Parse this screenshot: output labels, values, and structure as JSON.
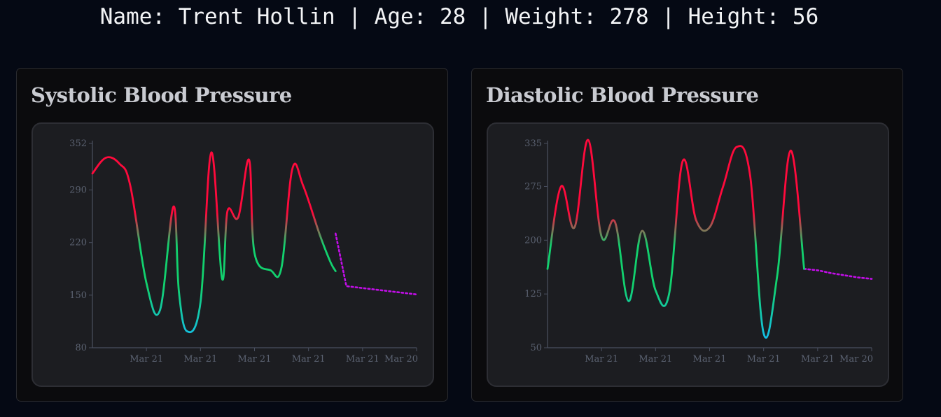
{
  "header": {
    "text": "Name: Trent Hollin | Age: 28 | Weight: 278 | Height: 56"
  },
  "colors": {
    "background": "#050914",
    "card": "#0b0b0d",
    "plot_area": "#1c1d21",
    "high": "#ff0a3c",
    "mid": "#12d16e",
    "low": "#14bfe6",
    "forecast": "#c20ee8",
    "axis": "#4a5060"
  },
  "chart_data": [
    {
      "type": "line",
      "title": "Systolic Blood Pressure",
      "xlabel": "",
      "ylabel": "",
      "ylim": [
        80,
        352
      ],
      "yticks": [
        80,
        150,
        220,
        290,
        352
      ],
      "xtick_labels": [
        "Mar 21",
        "Mar 21",
        "Mar 21",
        "Mar 21",
        "Mar 21",
        "Mar 20"
      ],
      "grid": false,
      "series": [
        {
          "style": "solid-gradient",
          "x": [
            0,
            0.5,
            1,
            1.4,
            2,
            2.5,
            3,
            3.2,
            3.5,
            4,
            4.4,
            4.8,
            5,
            5.4,
            5.8,
            6,
            6.6,
            7,
            7.4,
            7.8,
            8.4,
            8.8,
            9
          ],
          "y": [
            312,
            333,
            325,
            296,
            166,
            130,
            268,
            155,
            102,
            140,
            340,
            172,
            262,
            254,
            330,
            206,
            183,
            187,
            318,
            296,
            232,
            195,
            182
          ]
        },
        {
          "style": "dotted-forecast",
          "x": [
            9,
            9.4,
            12
          ],
          "y": [
            232,
            162,
            151
          ]
        }
      ]
    },
    {
      "type": "line",
      "title": "Diastolic Blood Pressure",
      "xlabel": "",
      "ylabel": "",
      "ylim": [
        50,
        335
      ],
      "yticks": [
        50,
        125,
        200,
        275,
        335
      ],
      "xtick_labels": [
        "Mar 21",
        "Mar 21",
        "Mar 21",
        "Mar 21",
        "Mar 21",
        "Mar 20"
      ],
      "grid": false,
      "series": [
        {
          "style": "solid-gradient",
          "x": [
            0,
            0.5,
            1,
            1.5,
            2,
            2.5,
            3,
            3.5,
            4,
            4.5,
            5,
            5.5,
            6,
            6.5,
            7,
            7.5,
            8,
            8.5,
            9,
            9.5,
            10,
            10.5,
            11,
            11.5,
            12
          ],
          "y": [
            160,
            275,
            218,
            340,
            205,
            225,
            115,
            213,
            130,
            125,
            310,
            228,
            218,
            275,
            330,
            290,
            70,
            150,
            325,
            160,
            158,
            154,
            151,
            148,
            146
          ]
        }
      ],
      "forecast_from_index": 19
    }
  ]
}
